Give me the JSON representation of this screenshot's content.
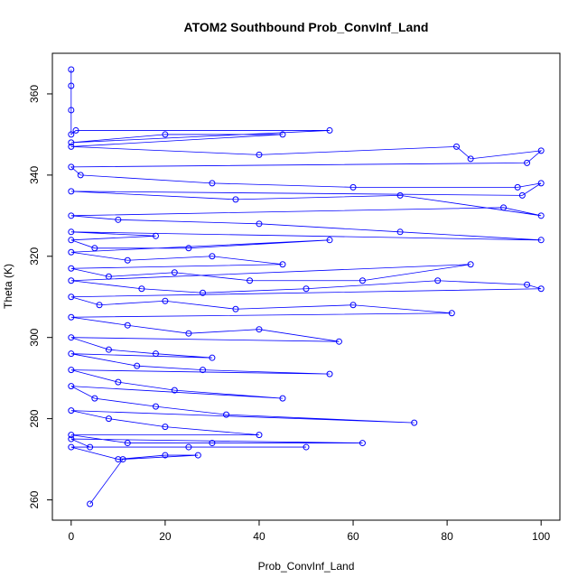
{
  "chart_data": {
    "type": "line",
    "title": "ATOM2 Southbound Prob_ConvInf_Land",
    "xlabel": "Prob_ConvInf_Land",
    "ylabel": "Theta (K)",
    "xlim": [
      -4,
      104
    ],
    "ylim": [
      255,
      370
    ],
    "x_ticks": [
      0,
      20,
      40,
      60,
      80,
      100
    ],
    "y_ticks": [
      260,
      280,
      300,
      320,
      340,
      360
    ],
    "grid": false,
    "legend": "none",
    "series": [
      {
        "color": "#0000ff",
        "points": [
          [
            0,
            366
          ],
          [
            0,
            362
          ],
          [
            0,
            356
          ],
          [
            0,
            350
          ],
          [
            1,
            351
          ],
          [
            55,
            351
          ],
          [
            0,
            348
          ],
          [
            20,
            350
          ],
          [
            45,
            350
          ],
          [
            0,
            347
          ],
          [
            40,
            345
          ],
          [
            82,
            347
          ],
          [
            85,
            344
          ],
          [
            100,
            346
          ],
          [
            97,
            343
          ],
          [
            0,
            342
          ],
          [
            2,
            340
          ],
          [
            30,
            338
          ],
          [
            60,
            337
          ],
          [
            95,
            337
          ],
          [
            100,
            338
          ],
          [
            96,
            335
          ],
          [
            0,
            336
          ],
          [
            35,
            334
          ],
          [
            70,
            335
          ],
          [
            100,
            330
          ],
          [
            92,
            332
          ],
          [
            0,
            330
          ],
          [
            10,
            329
          ],
          [
            40,
            328
          ],
          [
            70,
            326
          ],
          [
            100,
            324
          ],
          [
            0,
            326
          ],
          [
            18,
            325
          ],
          [
            0,
            324
          ],
          [
            5,
            322
          ],
          [
            25,
            322
          ],
          [
            55,
            324
          ],
          [
            0,
            321
          ],
          [
            12,
            319
          ],
          [
            30,
            320
          ],
          [
            45,
            318
          ],
          [
            0,
            317
          ],
          [
            8,
            315
          ],
          [
            22,
            316
          ],
          [
            38,
            314
          ],
          [
            62,
            314
          ],
          [
            85,
            318
          ],
          [
            0,
            314
          ],
          [
            15,
            312
          ],
          [
            28,
            311
          ],
          [
            50,
            312
          ],
          [
            78,
            314
          ],
          [
            97,
            313
          ],
          [
            100,
            312
          ],
          [
            0,
            310
          ],
          [
            6,
            308
          ],
          [
            20,
            309
          ],
          [
            35,
            307
          ],
          [
            60,
            308
          ],
          [
            81,
            306
          ],
          [
            0,
            305
          ],
          [
            12,
            303
          ],
          [
            25,
            301
          ],
          [
            40,
            302
          ],
          [
            57,
            299
          ],
          [
            0,
            300
          ],
          [
            8,
            297
          ],
          [
            18,
            296
          ],
          [
            30,
            295
          ],
          [
            0,
            296
          ],
          [
            14,
            293
          ],
          [
            28,
            292
          ],
          [
            55,
            291
          ],
          [
            0,
            292
          ],
          [
            10,
            289
          ],
          [
            22,
            287
          ],
          [
            45,
            285
          ],
          [
            0,
            288
          ],
          [
            5,
            285
          ],
          [
            18,
            283
          ],
          [
            33,
            281
          ],
          [
            73,
            279
          ],
          [
            0,
            282
          ],
          [
            8,
            280
          ],
          [
            20,
            278
          ],
          [
            40,
            276
          ],
          [
            0,
            276
          ],
          [
            12,
            274
          ],
          [
            30,
            274
          ],
          [
            62,
            274
          ],
          [
            0,
            275
          ],
          [
            4,
            273
          ],
          [
            25,
            273
          ],
          [
            50,
            273
          ],
          [
            0,
            273
          ],
          [
            10,
            270
          ],
          [
            20,
            271
          ],
          [
            27,
            271
          ],
          [
            11,
            270
          ],
          [
            4,
            259
          ]
        ]
      }
    ]
  }
}
